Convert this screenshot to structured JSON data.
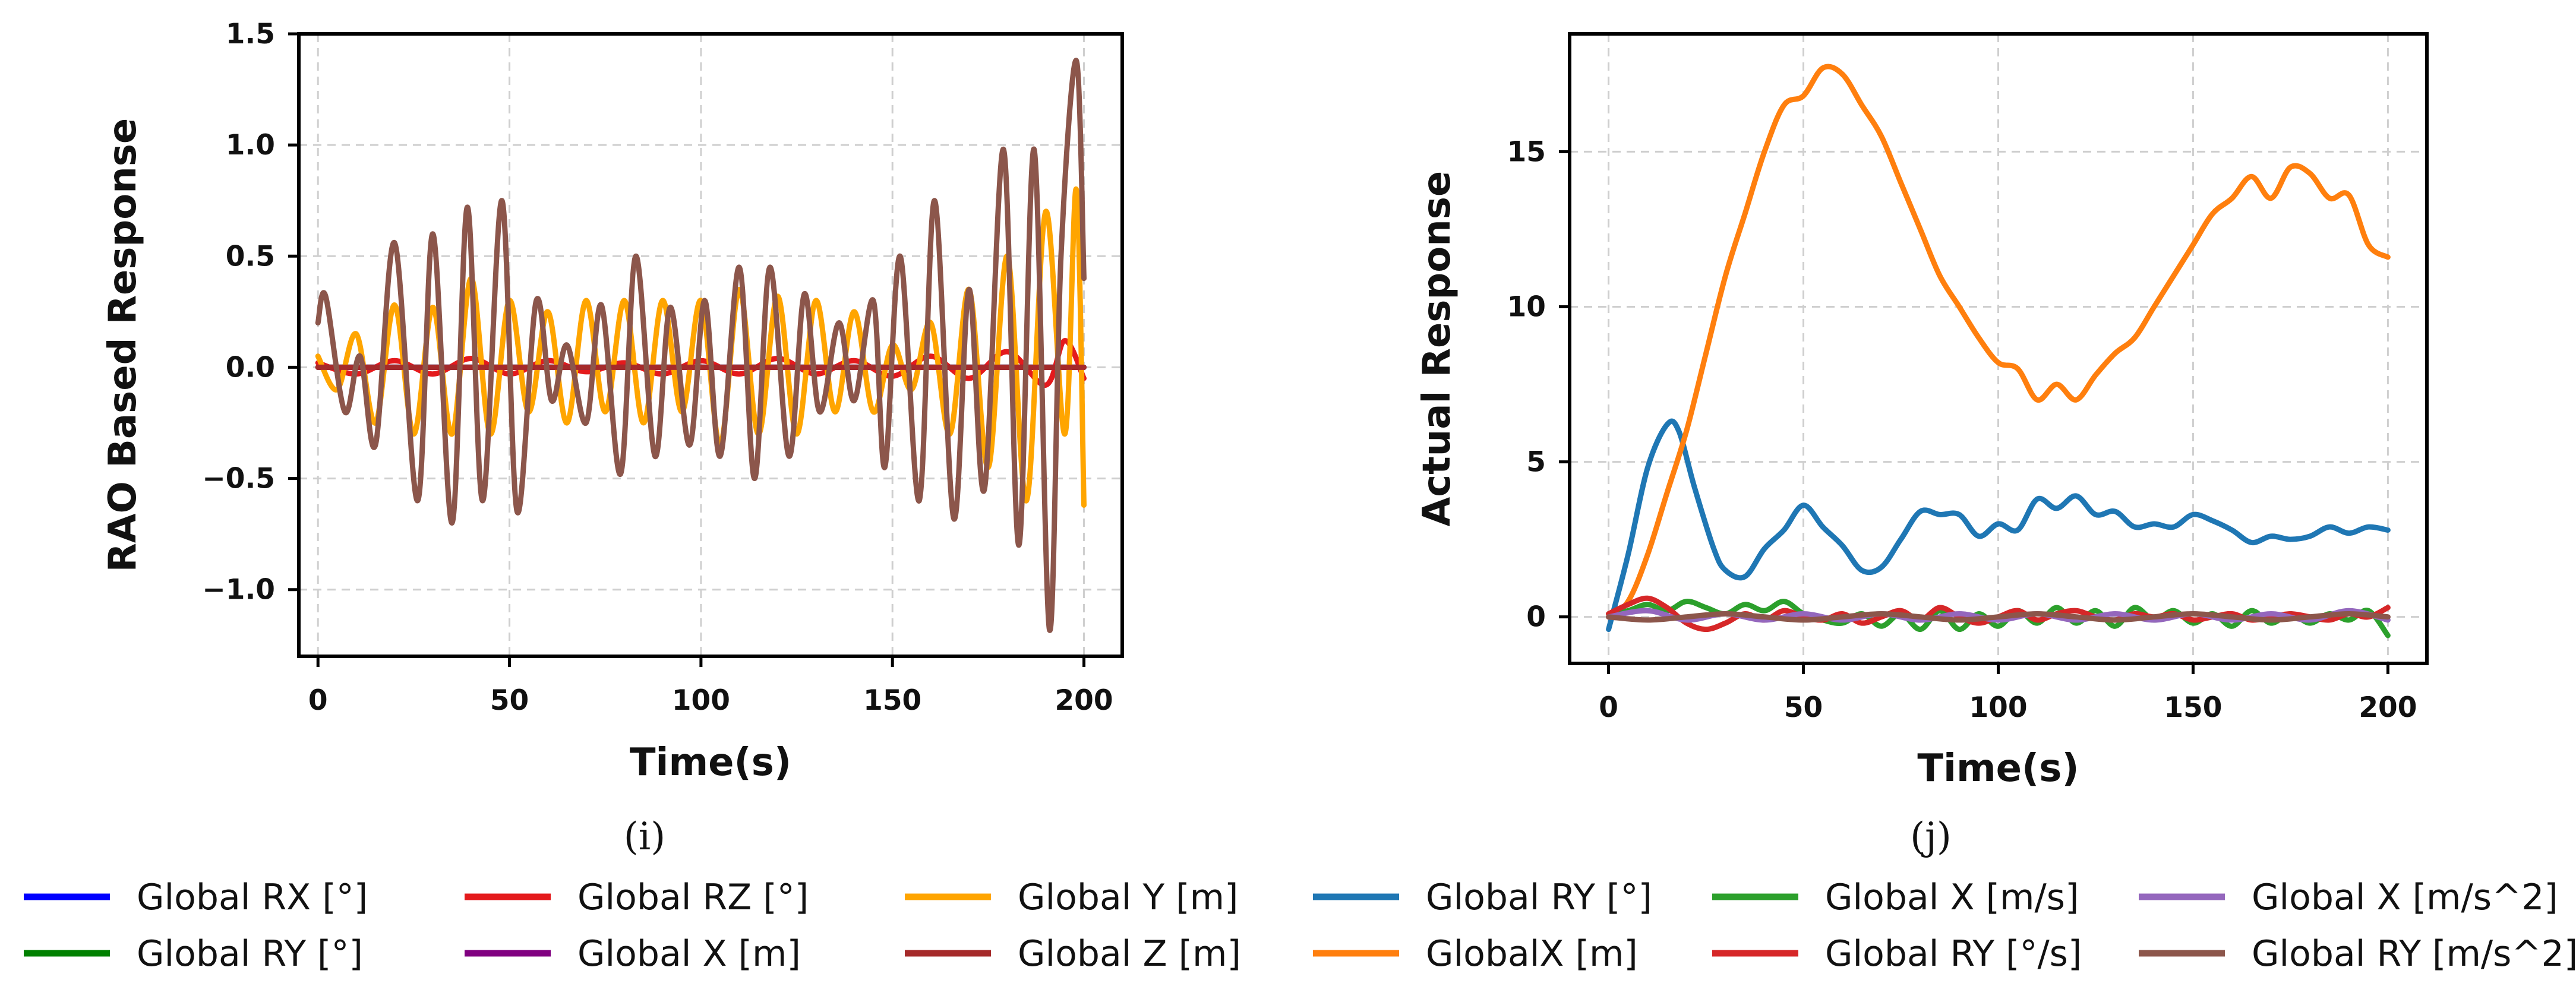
{
  "chart_data": [
    {
      "type": "line",
      "id": "i",
      "caption": "(i)",
      "xlabel": "Time(s)",
      "ylabel": "RAO Based Response",
      "xlim": [
        -5,
        210
      ],
      "ylim": [
        -1.3,
        1.5
      ],
      "xticks": [
        0,
        50,
        100,
        150,
        200
      ],
      "xtick_labels": [
        "0",
        "50",
        "100",
        "150",
        "200"
      ],
      "yticks": [
        -1.0,
        -0.5,
        0.0,
        0.5,
        1.0,
        1.5
      ],
      "ytick_labels": [
        "−1.0",
        "−0.5",
        "0.0",
        "0.5",
        "1.0",
        "1.5"
      ],
      "grid": true,
      "series": [
        {
          "name": "Global RX [°]",
          "color": "#0000ff",
          "x": [
            0,
            200
          ],
          "y": [
            0,
            0
          ]
        },
        {
          "name": "Global RY [°]",
          "color": "#008000",
          "x": [
            0,
            200
          ],
          "y": [
            0,
            0
          ]
        },
        {
          "name": "Global RZ [°]",
          "color": "#e41a1c",
          "x": [
            0,
            10,
            20,
            30,
            40,
            50,
            60,
            70,
            80,
            90,
            100,
            110,
            120,
            130,
            140,
            150,
            160,
            170,
            180,
            190,
            195,
            200
          ],
          "y": [
            0.02,
            -0.03,
            0.03,
            -0.03,
            0.04,
            -0.03,
            0.03,
            -0.02,
            0.02,
            -0.03,
            0.03,
            -0.03,
            0.04,
            -0.03,
            0.03,
            -0.04,
            0.05,
            -0.05,
            0.07,
            -0.08,
            0.12,
            -0.05
          ]
        },
        {
          "name": "Global X [m]",
          "color": "#800080",
          "x": [
            0,
            200
          ],
          "y": [
            0,
            0
          ]
        },
        {
          "name": "Global Y [m]",
          "color": "#ffa500",
          "x": [
            0,
            5,
            10,
            15,
            20,
            25,
            30,
            35,
            40,
            45,
            50,
            55,
            60,
            65,
            70,
            75,
            80,
            85,
            90,
            95,
            100,
            105,
            110,
            115,
            120,
            125,
            130,
            135,
            140,
            145,
            150,
            155,
            160,
            165,
            170,
            175,
            180,
            185,
            190,
            195,
            198,
            200
          ],
          "y": [
            0.05,
            -0.1,
            0.15,
            -0.25,
            0.28,
            -0.3,
            0.27,
            -0.3,
            0.4,
            -0.3,
            0.3,
            -0.2,
            0.25,
            -0.25,
            0.3,
            -0.2,
            0.3,
            -0.25,
            0.3,
            -0.2,
            0.3,
            -0.35,
            0.35,
            -0.3,
            0.32,
            -0.3,
            0.3,
            -0.2,
            0.25,
            -0.2,
            0.1,
            -0.1,
            0.2,
            -0.3,
            0.35,
            -0.45,
            0.5,
            -0.6,
            0.7,
            -0.3,
            0.8,
            -0.62
          ]
        },
        {
          "name": "Global Z [m]",
          "color": "#a52a2a",
          "x": [
            0,
            200
          ],
          "y": [
            0,
            0
          ]
        },
        {
          "name": "Global RY [m/s^2]",
          "color": "#8c564b",
          "x": [
            0,
            2,
            7,
            11,
            15,
            20,
            26,
            30,
            35,
            39,
            43,
            48,
            52,
            57,
            61,
            65,
            70,
            74,
            79,
            83,
            88,
            92,
            97,
            101,
            105,
            110,
            114,
            118,
            123,
            127,
            131,
            136,
            140,
            145,
            148,
            152,
            157,
            161,
            166,
            170,
            174,
            179,
            183,
            187,
            191,
            194,
            198,
            200
          ],
          "y": [
            0.2,
            0.32,
            -0.2,
            0.05,
            -0.35,
            0.56,
            -0.6,
            0.6,
            -0.7,
            0.72,
            -0.6,
            0.75,
            -0.65,
            0.3,
            -0.15,
            0.1,
            -0.25,
            0.28,
            -0.48,
            0.5,
            -0.4,
            0.27,
            -0.35,
            0.3,
            -0.4,
            0.45,
            -0.5,
            0.45,
            -0.4,
            0.33,
            -0.2,
            0.2,
            -0.15,
            0.3,
            -0.45,
            0.5,
            -0.6,
            0.75,
            -0.68,
            0.35,
            -0.55,
            0.98,
            -0.8,
            0.98,
            -1.18,
            0.5,
            1.38,
            0.4
          ]
        }
      ]
    },
    {
      "type": "line",
      "id": "j",
      "caption": "(j)",
      "xlabel": "Time(s)",
      "ylabel": "Actual Response",
      "xlim": [
        -10,
        210
      ],
      "ylim": [
        -1.5,
        18.8
      ],
      "xticks": [
        0,
        50,
        100,
        150,
        200
      ],
      "xtick_labels": [
        "0",
        "50",
        "100",
        "150",
        "200"
      ],
      "yticks": [
        0,
        5,
        10,
        15
      ],
      "ytick_labels": [
        "0",
        "5",
        "10",
        "15"
      ],
      "grid": true,
      "series": [
        {
          "name": "Global RY  [°]",
          "color": "#1f77b4",
          "x": [
            0,
            5,
            10,
            15,
            18,
            22,
            27,
            30,
            35,
            40,
            45,
            50,
            55,
            60,
            65,
            70,
            75,
            80,
            85,
            90,
            95,
            100,
            105,
            110,
            115,
            120,
            125,
            130,
            135,
            140,
            145,
            150,
            155,
            160,
            165,
            170,
            175,
            180,
            185,
            190,
            195,
            200
          ],
          "y": [
            -0.4,
            2.0,
            4.8,
            6.2,
            6.0,
            4.2,
            2.2,
            1.5,
            1.3,
            2.2,
            2.8,
            3.6,
            2.9,
            2.3,
            1.5,
            1.6,
            2.5,
            3.4,
            3.3,
            3.3,
            2.6,
            3.0,
            2.8,
            3.8,
            3.5,
            3.9,
            3.3,
            3.4,
            2.9,
            3.0,
            2.9,
            3.3,
            3.1,
            2.8,
            2.4,
            2.6,
            2.5,
            2.6,
            2.9,
            2.7,
            2.9,
            2.8
          ]
        },
        {
          "name": "GlobalX [m]",
          "color": "#ff7f0e",
          "x": [
            0,
            5,
            10,
            15,
            20,
            25,
            30,
            35,
            40,
            45,
            50,
            55,
            60,
            65,
            70,
            75,
            80,
            85,
            90,
            95,
            100,
            105,
            110,
            115,
            120,
            125,
            130,
            135,
            140,
            145,
            150,
            155,
            160,
            165,
            170,
            175,
            180,
            185,
            190,
            195,
            200
          ],
          "y": [
            0,
            0.5,
            2.0,
            4.0,
            6.0,
            8.5,
            11.0,
            13.0,
            15.0,
            16.5,
            16.8,
            17.7,
            17.5,
            16.5,
            15.5,
            14.0,
            12.5,
            11.0,
            10.0,
            9.0,
            8.2,
            8.0,
            7.0,
            7.5,
            7.0,
            7.8,
            8.5,
            9.0,
            10.0,
            11.0,
            12.0,
            13.0,
            13.5,
            14.2,
            13.5,
            14.5,
            14.3,
            13.5,
            13.6,
            12.0,
            11.6
          ]
        },
        {
          "name": "Global X [m/s]",
          "color": "#2ca02c",
          "x": [
            0,
            5,
            10,
            15,
            20,
            25,
            30,
            35,
            40,
            45,
            50,
            55,
            60,
            65,
            70,
            75,
            80,
            85,
            90,
            95,
            100,
            105,
            110,
            115,
            120,
            125,
            130,
            135,
            140,
            145,
            150,
            155,
            160,
            165,
            170,
            175,
            180,
            185,
            190,
            195,
            200
          ],
          "y": [
            0.1,
            0.2,
            0.4,
            0.2,
            0.5,
            0.3,
            0.1,
            0.4,
            0.2,
            0.5,
            0.1,
            -0.1,
            -0.2,
            0.1,
            -0.3,
            0.1,
            -0.4,
            0.2,
            -0.4,
            0.1,
            -0.3,
            0.2,
            -0.2,
            0.3,
            -0.2,
            0.2,
            -0.3,
            0.3,
            -0.1,
            0.2,
            -0.2,
            0.1,
            -0.3,
            0.2,
            -0.2,
            0.1,
            -0.2,
            0.1,
            -0.1,
            0.2,
            -0.6
          ]
        },
        {
          "name": "Global RY  [°/s]",
          "color": "#d62728",
          "x": [
            0,
            5,
            10,
            15,
            20,
            25,
            30,
            35,
            40,
            45,
            50,
            55,
            60,
            65,
            70,
            75,
            80,
            85,
            90,
            95,
            100,
            105,
            110,
            115,
            120,
            125,
            130,
            135,
            140,
            145,
            150,
            155,
            160,
            165,
            170,
            175,
            180,
            185,
            190,
            195,
            200
          ],
          "y": [
            0.1,
            0.4,
            0.6,
            0.3,
            -0.2,
            -0.4,
            -0.2,
            0.1,
            -0.1,
            0.2,
            0.0,
            -0.1,
            0.1,
            -0.2,
            0.0,
            0.2,
            -0.1,
            0.3,
            0.0,
            -0.2,
            0.0,
            0.2,
            -0.1,
            0.1,
            0.2,
            0.0,
            -0.1,
            0.1,
            0.0,
            0.1,
            -0.1,
            0.0,
            0.1,
            -0.1,
            0.0,
            0.1,
            0.0,
            -0.1,
            0.1,
            0.0,
            0.3
          ]
        },
        {
          "name": "Global X [m/s^2]",
          "color": "#9467bd",
          "x": [
            0,
            10,
            20,
            30,
            40,
            50,
            60,
            70,
            80,
            90,
            100,
            110,
            120,
            130,
            140,
            150,
            160,
            170,
            180,
            190,
            200
          ],
          "y": [
            0.0,
            0.2,
            -0.1,
            0.1,
            -0.1,
            0.1,
            -0.1,
            0.1,
            -0.1,
            0.1,
            -0.1,
            0.1,
            -0.1,
            0.1,
            -0.1,
            0.1,
            -0.1,
            0.1,
            -0.1,
            0.2,
            -0.1
          ]
        },
        {
          "name": "Global RY [m/s^2]",
          "color": "#8c564b",
          "x": [
            0,
            10,
            20,
            30,
            40,
            50,
            60,
            70,
            80,
            90,
            100,
            110,
            120,
            130,
            140,
            150,
            160,
            170,
            180,
            190,
            200
          ],
          "y": [
            0.0,
            -0.1,
            0.0,
            0.1,
            0.0,
            -0.1,
            0.0,
            0.1,
            0.0,
            -0.1,
            0.0,
            0.1,
            0.0,
            -0.1,
            0.0,
            0.1,
            0.0,
            -0.1,
            0.0,
            0.1,
            0.0
          ]
        }
      ]
    }
  ],
  "legend_left": [
    {
      "label": "Global RX [°]",
      "color": "#0000ff"
    },
    {
      "label": "Global RY [°]",
      "color": "#008000"
    },
    {
      "label": "Global RZ [°]",
      "color": "#e41a1c"
    },
    {
      "label": "Global X [m]",
      "color": "#800080"
    },
    {
      "label": "Global Y [m]",
      "color": "#ffa500"
    },
    {
      "label": "Global Z [m]",
      "color": "#a52a2a"
    }
  ],
  "legend_right": [
    {
      "label": "Global RY  [°]",
      "color": "#1f77b4"
    },
    {
      "label": "GlobalX [m]",
      "color": "#ff7f0e"
    },
    {
      "label": "Global X [m/s]",
      "color": "#2ca02c"
    },
    {
      "label": "Global RY  [°/s]",
      "color": "#d62728"
    },
    {
      "label": "Global X [m/s^2]",
      "color": "#9467bd"
    },
    {
      "label": "Global RY [m/s^2]",
      "color": "#8c564b"
    }
  ]
}
